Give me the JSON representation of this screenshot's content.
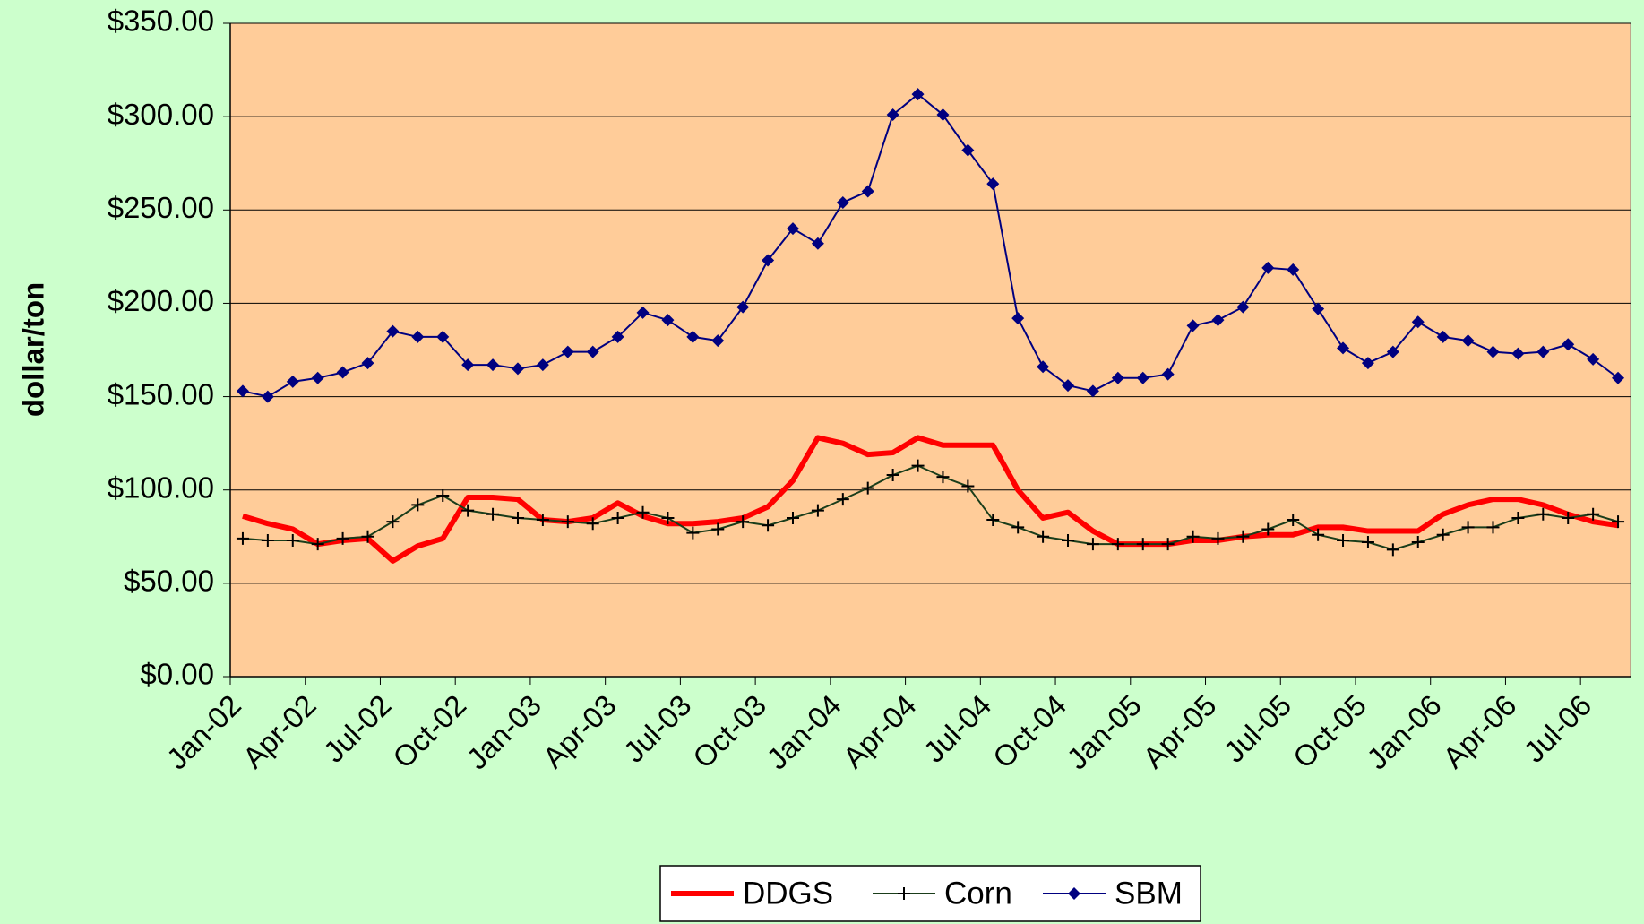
{
  "chart_data": {
    "type": "line",
    "y_label": "dollar/ton",
    "categories": [
      "Jan-02",
      null,
      null,
      "Apr-02",
      null,
      null,
      "Jul-02",
      null,
      null,
      "Oct-02",
      null,
      null,
      "Jan-03",
      null,
      null,
      "Apr-03",
      null,
      null,
      "Jul-03",
      null,
      null,
      "Oct-03",
      null,
      null,
      "Jan-04",
      null,
      null,
      "Apr-04",
      null,
      null,
      "Jul-04",
      null,
      null,
      "Oct-04",
      null,
      null,
      "Jan-05",
      null,
      null,
      "Apr-05",
      null,
      null,
      "Jul-05",
      null,
      null,
      "Oct-05",
      null,
      null,
      "Jan-06",
      null,
      null,
      "Apr-06",
      null,
      null,
      "Jul-06",
      null
    ],
    "series": [
      {
        "name": "DDGS",
        "color": "#ff0000",
        "marker": "none",
        "values": [
          86,
          82,
          79,
          71,
          73,
          74,
          62,
          70,
          74,
          96,
          96,
          95,
          84,
          83,
          85,
          93,
          86,
          82,
          82,
          83,
          85,
          91,
          105,
          128,
          125,
          119,
          120,
          128,
          124,
          124,
          124,
          100,
          85,
          88,
          78,
          71,
          71,
          71,
          73,
          73,
          75,
          76,
          76,
          80,
          80,
          78,
          78,
          78,
          87,
          92,
          95,
          95,
          92,
          87,
          83,
          81
        ]
      },
      {
        "name": "Corn",
        "color": "#1a3d1a",
        "marker": "plus",
        "values": [
          74,
          73,
          73,
          71,
          74,
          75,
          83,
          92,
          97,
          89,
          87,
          85,
          84,
          83,
          82,
          85,
          88,
          85,
          77,
          79,
          83,
          81,
          85,
          89,
          95,
          101,
          108,
          113,
          107,
          102,
          84,
          80,
          75,
          73,
          71,
          71,
          71,
          71,
          75,
          74,
          75,
          79,
          84,
          76,
          73,
          72,
          68,
          72,
          76,
          80,
          80,
          85,
          87,
          85,
          87,
          83
        ]
      },
      {
        "name": "SBM",
        "color": "#000080",
        "marker": "diamond",
        "values": [
          153,
          150,
          158,
          160,
          163,
          168,
          185,
          182,
          182,
          167,
          167,
          165,
          167,
          174,
          174,
          182,
          195,
          191,
          182,
          180,
          198,
          223,
          240,
          232,
          254,
          260,
          301,
          312,
          301,
          282,
          264,
          192,
          166,
          156,
          153,
          160,
          160,
          162,
          188,
          191,
          198,
          219,
          218,
          197,
          176,
          168,
          174,
          190,
          182,
          180,
          174,
          173,
          174,
          178,
          170,
          160
        ]
      }
    ],
    "ylim": [
      0,
      350
    ],
    "yticks": [
      {
        "value": 0,
        "label": "$0.00"
      },
      {
        "value": 50,
        "label": "$50.00"
      },
      {
        "value": 100,
        "label": "$100.00"
      },
      {
        "value": 150,
        "label": "$150.00"
      },
      {
        "value": 200,
        "label": "$200.00"
      },
      {
        "value": 250,
        "label": "$250.00"
      },
      {
        "value": 300,
        "label": "$300.00"
      },
      {
        "value": 350,
        "label": "$350.00"
      }
    ],
    "grid": true,
    "legend": "bottom",
    "plot_background": "#ffcc99",
    "background": "#ccffcc"
  }
}
